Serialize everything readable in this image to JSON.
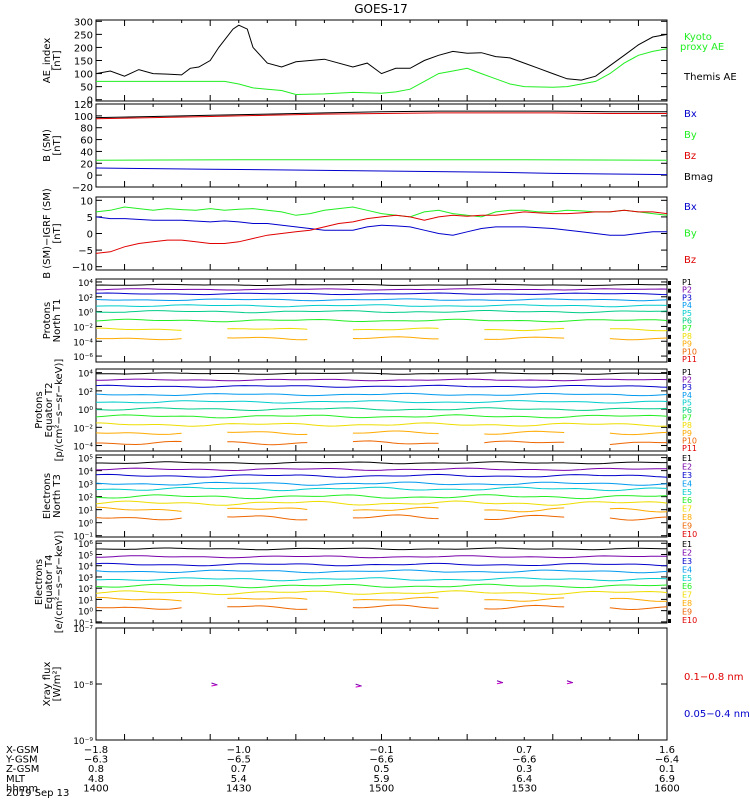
{
  "title": "GOES-17",
  "colors": {
    "black": "#000000",
    "red": "#e00000",
    "green": "#22ee22",
    "blue": "#0000cc",
    "cyan": "#00ccdd",
    "yellow": "#eedd00",
    "orange": "#ffaa00",
    "purple": "#7700aa",
    "magenta": "#cc00cc",
    "p_colors": [
      "#000000",
      "#7700aa",
      "#0000cc",
      "#0099ee",
      "#00cccc",
      "#00cc88",
      "#22ee22",
      "#eedd00",
      "#ffaa00",
      "#ee6600",
      "#e00000"
    ],
    "e_colors": [
      "#000000",
      "#7700aa",
      "#0000cc",
      "#0099ee",
      "#00cccc",
      "#22ee22",
      "#eedd00",
      "#ffaa00",
      "#ee6600",
      "#e00000"
    ]
  },
  "chart_data": [
    {
      "type": "line",
      "ylabel": [
        "AE_index",
        "[nT]"
      ],
      "ylim": [
        -5,
        305
      ],
      "yticks": [
        0,
        50,
        100,
        150,
        200,
        250,
        300
      ],
      "ytick_labels": [
        "0",
        "50",
        "100",
        "150",
        "200",
        "250",
        "300"
      ],
      "legend": [
        {
          "label": "Kyoto",
          "color": "green"
        },
        {
          "label": "proxy AE",
          "color": "green"
        },
        {
          "label": "Themis AE",
          "color": "black"
        }
      ],
      "series": [
        {
          "color": "black",
          "x": [
            1400,
            1405,
            1410,
            1415,
            1420,
            1425,
            1430,
            1433,
            1436,
            1440,
            1443,
            1448,
            1450,
            1453,
            1455,
            1460,
            1465,
            1470,
            1480,
            1490,
            1495,
            1500,
            1505,
            1510,
            1515,
            1520,
            1525,
            1530,
            1535,
            1540,
            1545,
            1550,
            1555,
            1560,
            1565,
            1570,
            1575,
            1580,
            1585,
            1590,
            1595,
            1600
          ],
          "y": [
            100,
            110,
            90,
            115,
            100,
            98,
            95,
            120,
            125,
            150,
            200,
            270,
            285,
            270,
            200,
            140,
            125,
            145,
            155,
            125,
            140,
            100,
            120,
            120,
            150,
            170,
            185,
            178,
            180,
            165,
            160,
            140,
            120,
            100,
            80,
            75,
            90,
            130,
            170,
            210,
            240,
            250
          ]
        },
        {
          "color": "green",
          "x": [
            1400,
            1410,
            1420,
            1430,
            1440,
            1445,
            1450,
            1455,
            1460,
            1465,
            1470,
            1480,
            1490,
            1500,
            1505,
            1510,
            1515,
            1520,
            1525,
            1530,
            1535,
            1540,
            1545,
            1550,
            1560,
            1565,
            1570,
            1575,
            1580,
            1585,
            1590,
            1595,
            1600
          ],
          "y": [
            70,
            70,
            70,
            70,
            70,
            70,
            60,
            45,
            40,
            35,
            20,
            22,
            28,
            25,
            30,
            40,
            70,
            100,
            110,
            120,
            100,
            80,
            60,
            50,
            48,
            50,
            60,
            70,
            100,
            140,
            170,
            185,
            195
          ]
        }
      ]
    },
    {
      "type": "line",
      "ylabel": [
        "B (SM)",
        "[nT]"
      ],
      "ylim": [
        -20,
        120
      ],
      "yticks": [
        -20,
        0,
        20,
        40,
        60,
        80,
        100,
        120
      ],
      "ytick_labels": [
        "−20",
        "0",
        "20",
        "40",
        "60",
        "80",
        "100",
        "120"
      ],
      "legend": [
        {
          "label": "Bx",
          "color": "blue"
        },
        {
          "label": "By",
          "color": "green"
        },
        {
          "label": "Bz",
          "color": "red"
        },
        {
          "label": "Bmag",
          "color": "black"
        }
      ],
      "series": [
        {
          "color": "black",
          "x": [
            1400,
            1420,
            1440,
            1460,
            1480,
            1500,
            1520,
            1540,
            1560,
            1580,
            1600
          ],
          "y": [
            97,
            99,
            101,
            103,
            105,
            107,
            108,
            108,
            108,
            107,
            107
          ]
        },
        {
          "color": "red",
          "x": [
            1400,
            1420,
            1440,
            1460,
            1480,
            1500,
            1520,
            1540,
            1560,
            1580,
            1600
          ],
          "y": [
            95,
            97,
            99,
            101,
            103,
            104,
            105,
            105,
            105,
            104,
            104
          ]
        },
        {
          "color": "green",
          "x": [
            1400,
            1450,
            1500,
            1550,
            1600
          ],
          "y": [
            25,
            26,
            26,
            26,
            25
          ]
        },
        {
          "color": "blue",
          "x": [
            1400,
            1420,
            1440,
            1460,
            1480,
            1500,
            1520,
            1540,
            1560,
            1580,
            1600
          ],
          "y": [
            12,
            11,
            10,
            9,
            8,
            7,
            6,
            5,
            3,
            2,
            1
          ]
        }
      ]
    },
    {
      "type": "line",
      "ylabel": [
        "B (SM)−IGRF (SM)",
        "[nT]"
      ],
      "ylim": [
        -11,
        11
      ],
      "yticks": [
        -10,
        -5,
        0,
        5,
        10
      ],
      "ytick_labels": [
        "−10",
        "−5",
        "0",
        "5",
        "10"
      ],
      "legend": [
        {
          "label": "Bx",
          "color": "blue"
        },
        {
          "label": "By",
          "color": "green"
        },
        {
          "label": "Bz",
          "color": "red"
        }
      ],
      "series": [
        {
          "color": "green",
          "x": [
            1400,
            1405,
            1410,
            1415,
            1420,
            1425,
            1430,
            1435,
            1440,
            1445,
            1450,
            1455,
            1460,
            1465,
            1470,
            1475,
            1480,
            1485,
            1490,
            1495,
            1500,
            1505,
            1510,
            1515,
            1520,
            1525,
            1530,
            1535,
            1540,
            1545,
            1550,
            1555,
            1560,
            1565,
            1570,
            1575,
            1580,
            1585,
            1590,
            1595,
            1600
          ],
          "y": [
            6.5,
            7,
            8,
            7.5,
            7,
            7.5,
            7.2,
            7,
            7.5,
            7,
            7.3,
            7.5,
            7,
            6.5,
            5.5,
            6,
            7,
            7.5,
            8,
            7,
            6,
            5.5,
            5,
            6.5,
            7,
            6,
            5.5,
            5,
            6.5,
            7,
            7,
            6.5,
            6.5,
            7,
            6.8,
            6.5,
            6.5,
            7,
            6.5,
            6,
            5.5
          ]
        },
        {
          "color": "blue",
          "x": [
            1400,
            1405,
            1410,
            1420,
            1430,
            1440,
            1445,
            1450,
            1455,
            1460,
            1470,
            1480,
            1490,
            1495,
            1500,
            1505,
            1510,
            1515,
            1520,
            1525,
            1530,
            1535,
            1540,
            1545,
            1550,
            1560,
            1570,
            1575,
            1580,
            1585,
            1590,
            1595,
            1600
          ],
          "y": [
            5,
            4.5,
            4.5,
            4,
            4,
            3.5,
            3.8,
            3.5,
            3,
            3,
            2,
            1,
            1,
            2,
            2.5,
            2.3,
            2,
            1,
            0,
            -0.5,
            0.5,
            1.5,
            2,
            2,
            2,
            1.5,
            0.5,
            0,
            -0.5,
            -0.5,
            0,
            0.5,
            0.5
          ]
        },
        {
          "color": "red",
          "x": [
            1400,
            1405,
            1410,
            1415,
            1420,
            1425,
            1430,
            1435,
            1440,
            1445,
            1450,
            1455,
            1460,
            1465,
            1470,
            1475,
            1480,
            1485,
            1490,
            1495,
            1500,
            1505,
            1510,
            1515,
            1520,
            1525,
            1530,
            1535,
            1540,
            1545,
            1550,
            1555,
            1560,
            1565,
            1570,
            1575,
            1580,
            1585,
            1590,
            1595,
            1600
          ],
          "y": [
            -6,
            -5.5,
            -4,
            -3,
            -2.5,
            -2,
            -2,
            -2.5,
            -3,
            -3,
            -2.5,
            -1.5,
            -0.5,
            0,
            0.5,
            1,
            2,
            3,
            3.5,
            4.5,
            5,
            5.5,
            5,
            4,
            5,
            5.5,
            5.2,
            5.5,
            5.5,
            6,
            6.5,
            6.2,
            6,
            6,
            6.2,
            6.5,
            6.5,
            7,
            6.5,
            6.5,
            6
          ]
        }
      ]
    },
    {
      "type": "line",
      "log": true,
      "ylabel": [
        "Protons",
        "North T1"
      ],
      "ylog_range": [
        -6.8,
        4.4
      ],
      "ytick_exponents": [
        -6,
        -4,
        -2,
        0,
        2,
        4
      ],
      "ytick_labels": [
        "10⁻⁶",
        "10⁻⁴",
        "10⁻²",
        "10⁰",
        "10²",
        "10⁴"
      ],
      "legend": [
        "P1",
        "P2",
        "P3",
        "P4",
        "P5",
        "P6",
        "P7",
        "P8",
        "P9",
        "P10",
        "P11"
      ],
      "log_levels": [
        3.6,
        3.0,
        2.4,
        1.6,
        0.8,
        0.0,
        -1.2,
        -2.4,
        -3.6
      ]
    },
    {
      "type": "line",
      "log": true,
      "ylabel": [
        "Protons",
        "Equator T2",
        "[p/(cm²−s−sr−keV)]"
      ],
      "ylog_range": [
        -4.6,
        4.4
      ],
      "ytick_exponents": [
        -4,
        -2,
        0,
        2,
        4
      ],
      "ytick_labels": [
        "10⁻⁴",
        "10⁻²",
        "10⁰",
        "10²",
        "10⁴"
      ],
      "legend": [
        "P1",
        "P2",
        "P3",
        "P4",
        "P5",
        "P6",
        "P7",
        "P8",
        "P9",
        "P10",
        "P11"
      ],
      "log_levels": [
        3.9,
        3.2,
        2.5,
        1.6,
        0.8,
        0.0,
        -0.8,
        -1.7,
        -2.6,
        -3.7
      ]
    },
    {
      "type": "line",
      "log": true,
      "ylabel": [
        "Electrons",
        "North T3"
      ],
      "ylog_range": [
        -1.1,
        5.2
      ],
      "ytick_exponents": [
        -1,
        0,
        1,
        2,
        3,
        4,
        5
      ],
      "ytick_labels": [
        "10⁻¹",
        "10⁰",
        "10¹",
        "10²",
        "10³",
        "10⁴",
        "10⁵"
      ],
      "legend": [
        "E1",
        "E2",
        "E3",
        "E4",
        "E5",
        "E6",
        "E7",
        "E8",
        "E9",
        "E10"
      ],
      "log_levels": [
        4.6,
        4.1,
        3.6,
        3.0,
        2.6,
        2.0,
        1.5,
        1.0,
        0.4
      ]
    },
    {
      "type": "line",
      "log": true,
      "ylabel": [
        "Electrons",
        "Equator T4",
        "[e/(cm²−s−sr−keV)]"
      ],
      "ylog_range": [
        -1.1,
        6.2
      ],
      "ytick_exponents": [
        -1,
        0,
        1,
        2,
        3,
        4,
        5,
        6
      ],
      "ytick_labels": [
        "10⁻¹",
        "10⁰",
        "10¹",
        "10²",
        "10³",
        "10⁴",
        "10⁵",
        "10⁶"
      ],
      "legend": [
        "E1",
        "E2",
        "E3",
        "E4",
        "E5",
        "E6",
        "E7",
        "E8",
        "E9",
        "E10"
      ],
      "log_levels": [
        5.5,
        4.8,
        4.1,
        3.5,
        2.8,
        2.2,
        1.6,
        1.0,
        0.3
      ]
    },
    {
      "type": "scatter",
      "log": true,
      "ylabel": [
        "Xray flux",
        "[W/m²]"
      ],
      "ylog_range": [
        -9,
        -7
      ],
      "ytick_exponents": [
        -9,
        -8,
        -7
      ],
      "ytick_labels": [
        "10⁻⁹",
        "10⁻⁸",
        "10⁻⁷"
      ],
      "legend": [
        {
          "label": "0.1−0.8 nm",
          "color": "red"
        },
        {
          "label": "0.05−0.4 nm",
          "color": "blue"
        }
      ],
      "points": [
        {
          "x": 1441.5,
          "y_exp": -8.0
        },
        {
          "x": 1492,
          "y_exp": -8.02
        },
        {
          "x": 1541.5,
          "y_exp": -7.96
        },
        {
          "x": 1566,
          "y_exp": -7.96
        }
      ]
    }
  ],
  "x_axis": {
    "rows": [
      {
        "label": "X-GSM",
        "values": [
          "−1.8",
          "−1.0",
          "−0.1",
          "0.7",
          "1.6"
        ]
      },
      {
        "label": "Y-GSM",
        "values": [
          "−6.3",
          "−6.5",
          "−6.6",
          "−6.6",
          "−6.4"
        ]
      },
      {
        "label": "Z-GSM",
        "values": [
          "0.8",
          "0.7",
          "0.5",
          "0.3",
          "0.1"
        ]
      },
      {
        "label": "MLT",
        "values": [
          "4.8",
          "5.4",
          "5.9",
          "6.4",
          "6.9"
        ]
      },
      {
        "label": "hhmm",
        "values": [
          "1400",
          "1430",
          "1500",
          "1530",
          "1600"
        ]
      }
    ],
    "date": "2019 Sep 13"
  }
}
